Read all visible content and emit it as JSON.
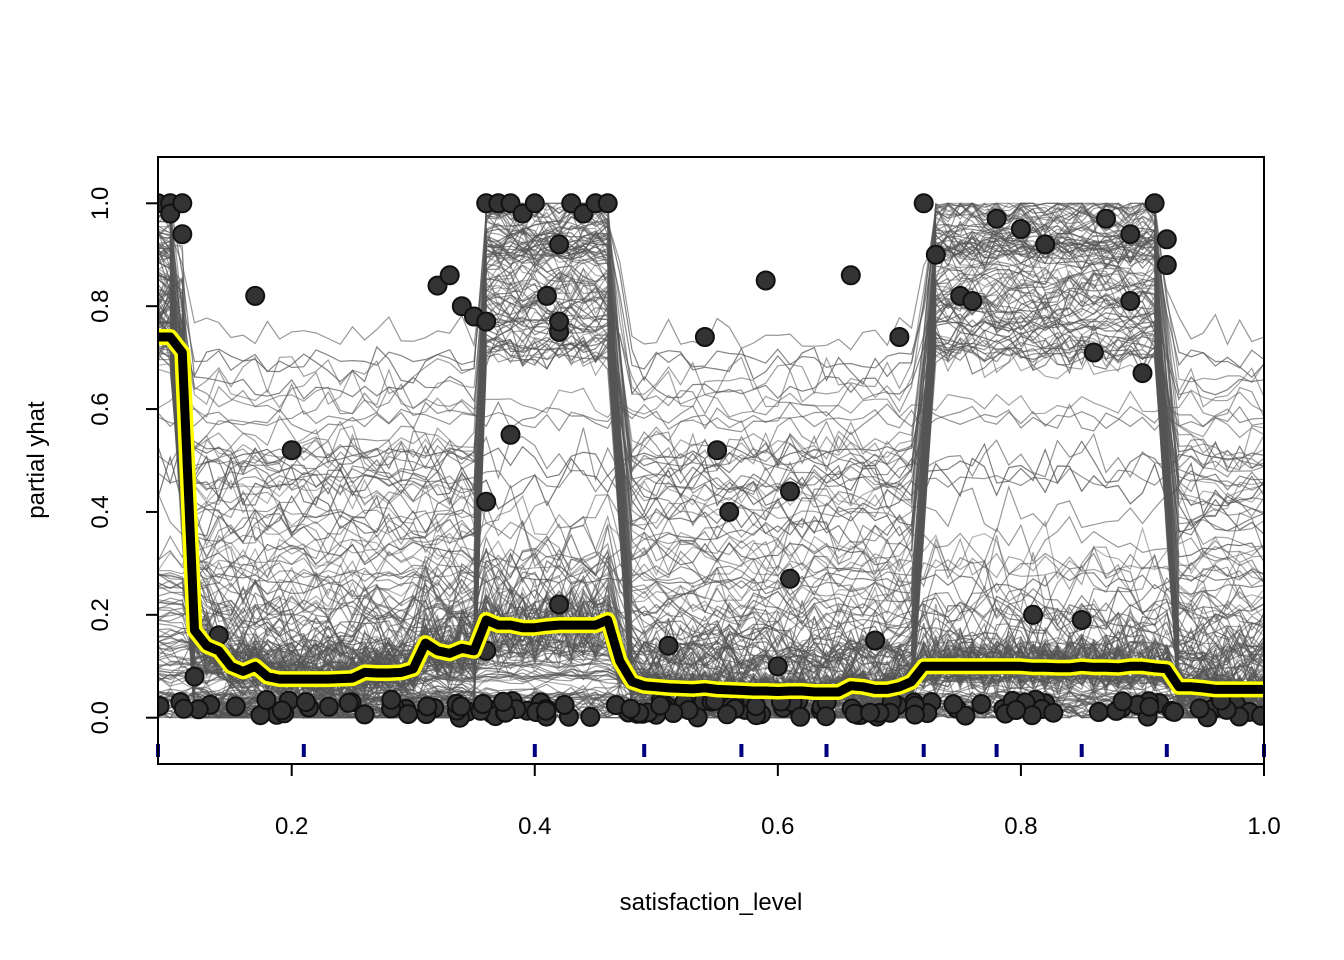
{
  "chart_data": {
    "type": "line",
    "subtype": "ice-plot",
    "title": "",
    "xlabel": "satisfaction_level",
    "ylabel": "partial yhat",
    "xlim": [
      0.09,
      1.0
    ],
    "ylim": [
      -0.09,
      1.09
    ],
    "x_ticks": [
      0.2,
      0.4,
      0.6,
      0.8,
      1.0
    ],
    "x_tick_labels": [
      "0.2",
      "0.4",
      "0.6",
      "0.8",
      "1.0"
    ],
    "y_ticks": [
      0.0,
      0.2,
      0.4,
      0.6,
      0.8,
      1.0
    ],
    "y_tick_labels": [
      "0.0",
      "0.2",
      "0.4",
      "0.6",
      "0.8",
      "1.0"
    ],
    "grid": false,
    "legend": "none",
    "colors": {
      "ice_lines": "#555555",
      "points": "#333333",
      "pdp_outline": "#ffff00",
      "pdp_line": "#000000",
      "rug": "#000080"
    },
    "rug_x": [
      0.09,
      0.21,
      0.4,
      0.49,
      0.57,
      0.64,
      0.72,
      0.78,
      0.85,
      0.92,
      1.0
    ],
    "grid_x": [
      0.09,
      0.1,
      0.11,
      0.12,
      0.13,
      0.14,
      0.15,
      0.16,
      0.17,
      0.18,
      0.19,
      0.2,
      0.21,
      0.22,
      0.23,
      0.24,
      0.25,
      0.26,
      0.27,
      0.28,
      0.29,
      0.3,
      0.31,
      0.32,
      0.33,
      0.34,
      0.35,
      0.36,
      0.37,
      0.38,
      0.39,
      0.4,
      0.41,
      0.42,
      0.43,
      0.44,
      0.45,
      0.46,
      0.47,
      0.48,
      0.49,
      0.5,
      0.51,
      0.52,
      0.53,
      0.54,
      0.55,
      0.56,
      0.57,
      0.58,
      0.59,
      0.6,
      0.61,
      0.62,
      0.63,
      0.64,
      0.65,
      0.66,
      0.67,
      0.68,
      0.69,
      0.7,
      0.71,
      0.72,
      0.73,
      0.74,
      0.75,
      0.76,
      0.77,
      0.78,
      0.79,
      0.8,
      0.81,
      0.82,
      0.83,
      0.84,
      0.85,
      0.86,
      0.87,
      0.88,
      0.89,
      0.9,
      0.91,
      0.92,
      0.93,
      0.94,
      0.95,
      0.96,
      0.97,
      0.98,
      0.99,
      1.0
    ],
    "series": [
      {
        "role": "pdp",
        "values": [
          0.74,
          0.74,
          0.71,
          0.17,
          0.14,
          0.13,
          0.1,
          0.09,
          0.1,
          0.08,
          0.075,
          0.075,
          0.075,
          0.075,
          0.075,
          0.076,
          0.077,
          0.088,
          0.087,
          0.087,
          0.088,
          0.095,
          0.145,
          0.13,
          0.125,
          0.135,
          0.13,
          0.19,
          0.18,
          0.18,
          0.175,
          0.175,
          0.178,
          0.18,
          0.18,
          0.18,
          0.18,
          0.19,
          0.11,
          0.07,
          0.062,
          0.06,
          0.058,
          0.057,
          0.056,
          0.058,
          0.055,
          0.054,
          0.053,
          0.052,
          0.052,
          0.051,
          0.052,
          0.052,
          0.05,
          0.05,
          0.05,
          0.062,
          0.06,
          0.055,
          0.055,
          0.06,
          0.07,
          0.1,
          0.1,
          0.1,
          0.1,
          0.1,
          0.1,
          0.1,
          0.1,
          0.1,
          0.098,
          0.098,
          0.097,
          0.097,
          0.1,
          0.098,
          0.098,
          0.097,
          0.1,
          0.1,
          0.097,
          0.095,
          0.06,
          0.06,
          0.058,
          0.055,
          0.055,
          0.055,
          0.055,
          0.055
        ]
      }
    ],
    "observed_points": [
      [
        0.09,
        1.0
      ],
      [
        0.1,
        1.0
      ],
      [
        0.1,
        0.98
      ],
      [
        0.11,
        1.0
      ],
      [
        0.11,
        0.94
      ],
      [
        0.12,
        0.08
      ],
      [
        0.14,
        0.16
      ],
      [
        0.17,
        0.82
      ],
      [
        0.2,
        0.52
      ],
      [
        0.32,
        0.84
      ],
      [
        0.33,
        0.86
      ],
      [
        0.34,
        0.8
      ],
      [
        0.35,
        0.78
      ],
      [
        0.36,
        0.77
      ],
      [
        0.36,
        0.42
      ],
      [
        0.36,
        0.13
      ],
      [
        0.38,
        0.55
      ],
      [
        0.36,
        1.0
      ],
      [
        0.37,
        1.0
      ],
      [
        0.38,
        1.0
      ],
      [
        0.39,
        0.98
      ],
      [
        0.4,
        1.0
      ],
      [
        0.41,
        0.82
      ],
      [
        0.42,
        0.75
      ],
      [
        0.42,
        0.77
      ],
      [
        0.42,
        0.92
      ],
      [
        0.42,
        0.22
      ],
      [
        0.43,
        1.0
      ],
      [
        0.44,
        0.98
      ],
      [
        0.45,
        1.0
      ],
      [
        0.46,
        1.0
      ],
      [
        0.51,
        0.14
      ],
      [
        0.54,
        0.74
      ],
      [
        0.55,
        0.52
      ],
      [
        0.56,
        0.4
      ],
      [
        0.59,
        0.85
      ],
      [
        0.6,
        0.1
      ],
      [
        0.61,
        0.44
      ],
      [
        0.61,
        0.27
      ],
      [
        0.66,
        0.86
      ],
      [
        0.68,
        0.15
      ],
      [
        0.7,
        0.74
      ],
      [
        0.72,
        1.0
      ],
      [
        0.73,
        0.9
      ],
      [
        0.75,
        0.82
      ],
      [
        0.76,
        0.81
      ],
      [
        0.78,
        0.97
      ],
      [
        0.8,
        0.95
      ],
      [
        0.82,
        0.92
      ],
      [
        0.81,
        0.2
      ],
      [
        0.85,
        0.19
      ],
      [
        0.86,
        0.71
      ],
      [
        0.87,
        0.97
      ],
      [
        0.89,
        0.94
      ],
      [
        0.89,
        0.81
      ],
      [
        0.9,
        0.67
      ],
      [
        0.92,
        0.93
      ],
      [
        0.92,
        0.88
      ],
      [
        0.91,
        1.0
      ]
    ]
  }
}
